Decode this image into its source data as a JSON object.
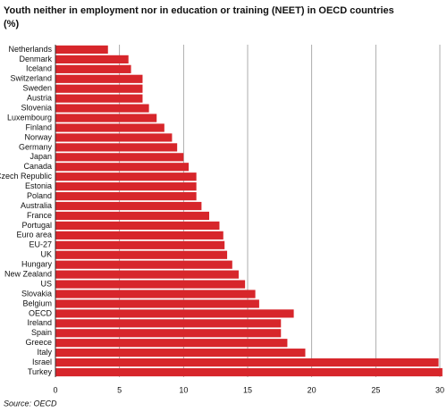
{
  "chart_data": {
    "type": "barh",
    "title": "Youth neither in employment nor in education or training (NEET) in OECD countries",
    "subtitle": "(%)",
    "source": "Source: OECD",
    "categories": [
      "Netherlands",
      "Denmark",
      "Iceland",
      "Switzerland",
      "Sweden",
      "Austria",
      "Slovenia",
      "Luxembourg",
      "Finland",
      "Norway",
      "Germany",
      "Japan",
      "Canada",
      "Czech Republic",
      "Estonia",
      "Poland",
      "Australia",
      "France",
      "Portugal",
      "Euro area",
      "EU-27",
      "UK",
      "Hungary",
      "New Zealand",
      "US",
      "Slovakia",
      "Belgium",
      "OECD",
      "Ireland",
      "Spain",
      "Greece",
      "Italy",
      "Israel",
      "Turkey"
    ],
    "values": [
      4.1,
      5.7,
      5.9,
      6.8,
      6.8,
      6.8,
      7.3,
      7.9,
      8.5,
      9.1,
      9.5,
      10.0,
      10.4,
      11.0,
      11.0,
      11.0,
      11.4,
      12.0,
      12.8,
      13.1,
      13.2,
      13.4,
      13.8,
      14.3,
      14.8,
      15.6,
      15.9,
      18.6,
      17.6,
      17.6,
      18.1,
      19.5,
      29.9,
      30.2
    ],
    "color": "#d7262b",
    "xlim": [
      0,
      30
    ],
    "xticks": [
      0,
      5,
      10,
      15,
      20,
      25,
      30
    ],
    "grid": true
  }
}
